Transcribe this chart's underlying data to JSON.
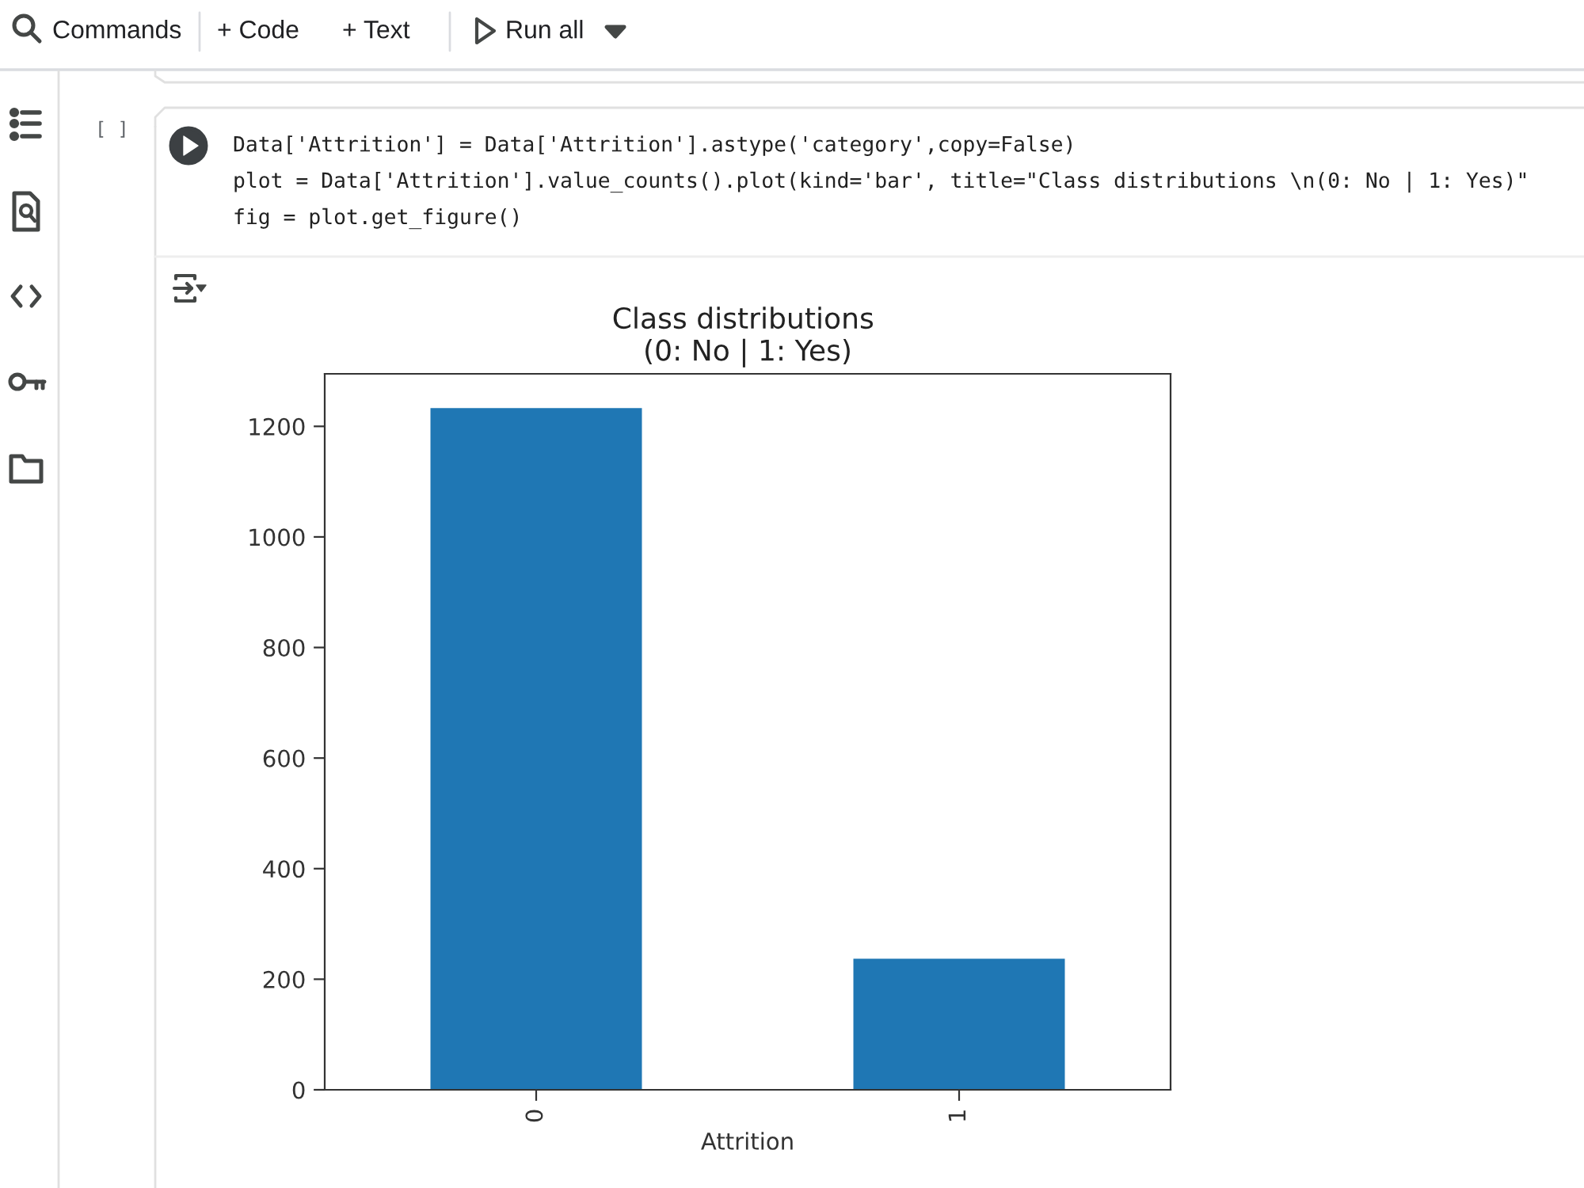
{
  "chart_data": {
    "type": "bar",
    "title": "Class distributions \n(0: No | 1: Yes)",
    "xlabel": "Attrition",
    "categories": [
      "0",
      "1"
    ],
    "values": [
      1233,
      237
    ],
    "color": "#1f77b4",
    "ylim": [
      0,
      1295
    ],
    "yticks": [
      0,
      200,
      400,
      600,
      800,
      1000,
      1200
    ],
    "annotations": [
      "Commands",
      "+ Code",
      "+ Text",
      "Run all",
      "[ ]",
      "Data['Attrition'] = Data['Attrition'].astype('category',copy=False)",
      "plot = Data['Attrition'].value_counts().plot(kind='bar', title=\"Class distributions \\n(0: No | 1: Yes)\"",
      "fig = plot.get_figure()"
    ]
  }
}
